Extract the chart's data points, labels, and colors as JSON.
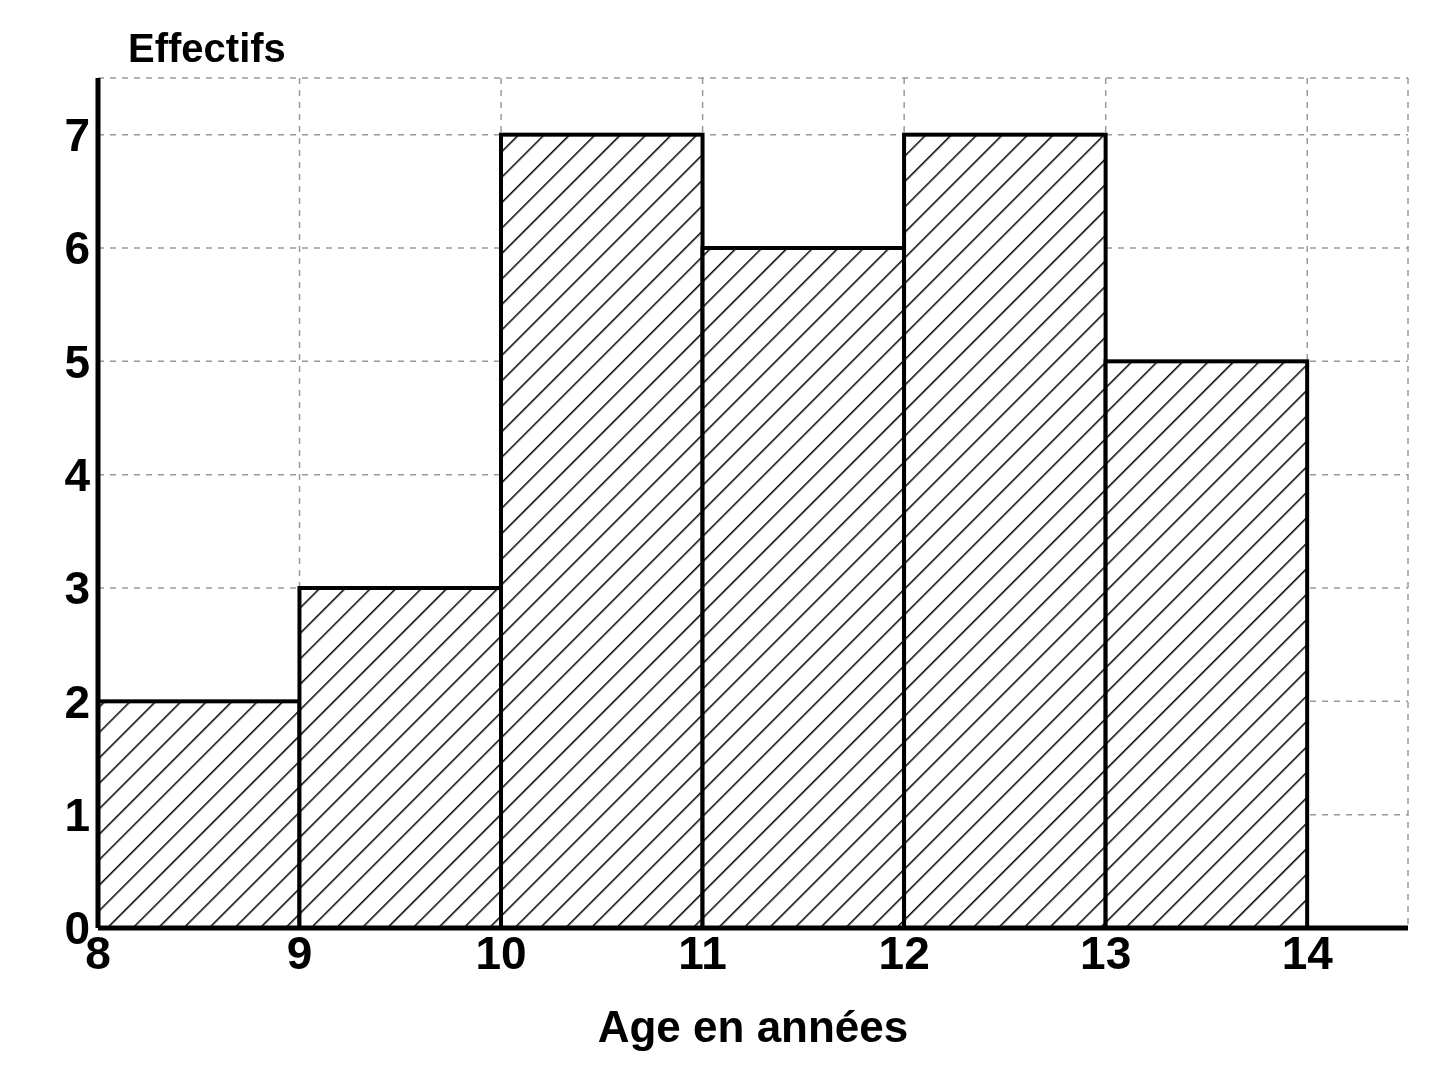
{
  "chart_data": {
    "type": "histogram",
    "xlabel": "Age en années",
    "ylabel": "Effectifs",
    "bins": [
      8,
      9,
      10,
      11,
      12,
      13,
      14
    ],
    "values": [
      2,
      3,
      7,
      6,
      7,
      5
    ],
    "color": "#000000",
    "xlim": [
      8,
      14.5
    ],
    "ylim": [
      0,
      7.5
    ],
    "xticks": [
      8,
      9,
      10,
      11,
      12,
      13,
      14
    ],
    "yticks": [
      0,
      1,
      2,
      3,
      4,
      5,
      6,
      7
    ],
    "grid": true
  }
}
